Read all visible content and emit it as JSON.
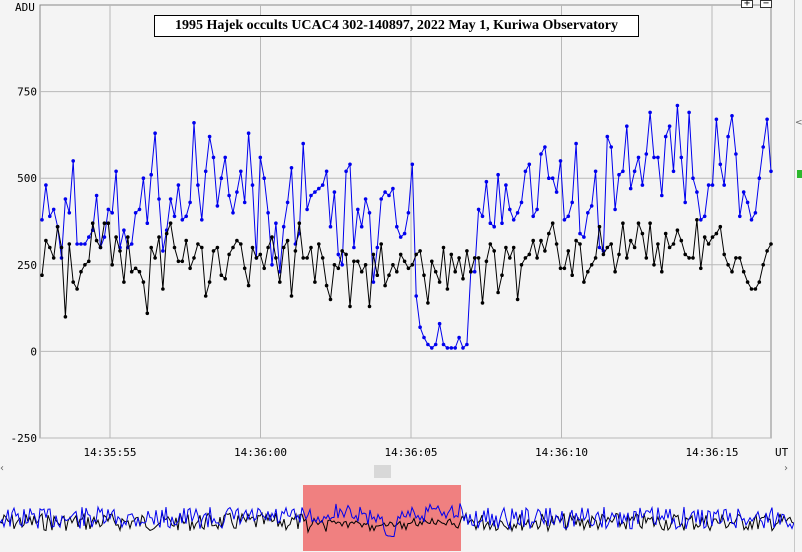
{
  "chart_data": {
    "type": "line",
    "title": "1995 Hajek occults UCAC4 302-140897, 2022 May 1, Kuriwa Observatory",
    "ylabel": "ADU",
    "xlabel": "UT",
    "ylim": [
      -250,
      1000
    ],
    "yticks": [
      750,
      500,
      250,
      0,
      -250
    ],
    "xlim": [
      14.35533,
      14.36183
    ],
    "xtick_labels": [
      "14:35:55",
      "14:36:00",
      "14:36:05",
      "14:36:10",
      "14:36:15"
    ],
    "grid": true,
    "series": [
      {
        "color": "#0000ee",
        "values": [
          380,
          480,
          390,
          410,
          360,
          270,
          440,
          400,
          550,
          310,
          310,
          310,
          330,
          350,
          450,
          300,
          330,
          410,
          400,
          520,
          300,
          350,
          300,
          310,
          400,
          410,
          500,
          370,
          510,
          630,
          440,
          290,
          350,
          440,
          390,
          480,
          380,
          390,
          430,
          660,
          480,
          380,
          520,
          620,
          560,
          420,
          500,
          560,
          450,
          400,
          460,
          520,
          430,
          630,
          480,
          270,
          560,
          500,
          400,
          250,
          370,
          230,
          360,
          430,
          530,
          310,
          340,
          600,
          410,
          450,
          460,
          470,
          480,
          520,
          360,
          460,
          280,
          250,
          520,
          540,
          300,
          410,
          360,
          440,
          400,
          200,
          300,
          440,
          460,
          450,
          470,
          360,
          330,
          340,
          400,
          540,
          160,
          70,
          40,
          20,
          10,
          20,
          80,
          20,
          10,
          10,
          10,
          40,
          10,
          20,
          230,
          230,
          410,
          390,
          490,
          370,
          360,
          510,
          370,
          480,
          410,
          380,
          400,
          430,
          520,
          540,
          390,
          410,
          570,
          590,
          500,
          500,
          460,
          550,
          380,
          390,
          430,
          600,
          340,
          330,
          400,
          420,
          520,
          300,
          290,
          620,
          590,
          410,
          510,
          520,
          650,
          470,
          520,
          560,
          480,
          570,
          690,
          560,
          560,
          450,
          620,
          650,
          520,
          710,
          560,
          430,
          690,
          500,
          460,
          380,
          390,
          480,
          480,
          670,
          540,
          480,
          620,
          680,
          570,
          390,
          460,
          430,
          380,
          400,
          500,
          590,
          670,
          520
        ]
      },
      {
        "color": "#000000",
        "values": [
          220,
          320,
          300,
          270,
          360,
          300,
          100,
          310,
          200,
          180,
          230,
          250,
          260,
          370,
          320,
          300,
          370,
          370,
          250,
          330,
          290,
          200,
          330,
          230,
          240,
          230,
          200,
          110,
          300,
          270,
          330,
          180,
          340,
          370,
          300,
          260,
          260,
          320,
          240,
          270,
          310,
          300,
          160,
          200,
          290,
          300,
          220,
          210,
          280,
          300,
          320,
          310,
          240,
          190,
          300,
          270,
          280,
          240,
          300,
          330,
          270,
          200,
          300,
          320,
          160,
          290,
          370,
          270,
          270,
          300,
          200,
          310,
          270,
          190,
          150,
          250,
          240,
          290,
          280,
          130,
          260,
          260,
          230,
          250,
          130,
          280,
          220,
          310,
          190,
          220,
          250,
          230,
          280,
          260,
          240,
          250,
          280,
          290,
          220,
          140,
          260,
          230,
          200,
          300,
          180,
          280,
          230,
          270,
          210,
          290,
          230,
          270,
          270,
          140,
          260,
          310,
          290,
          170,
          220,
          300,
          270,
          300,
          150,
          250,
          270,
          280,
          320,
          270,
          320,
          290,
          340,
          370,
          310,
          240,
          240,
          290,
          220,
          320,
          310,
          200,
          230,
          250,
          270,
          360,
          280,
          300,
          310,
          230,
          280,
          370,
          270,
          320,
          300,
          370,
          340,
          270,
          370,
          250,
          310,
          230,
          340,
          300,
          310,
          350,
          320,
          280,
          270,
          270,
          380,
          240,
          330,
          310,
          330,
          340,
          360,
          280,
          250,
          230,
          270,
          270,
          230,
          200,
          180,
          180,
          200,
          250,
          290,
          310
        ]
      }
    ]
  },
  "ui": {
    "zoom_in_label": "+",
    "zoom_out_label": "−",
    "scroll_left_label": "‹",
    "scroll_right_label": "›",
    "edge_arrow_label": "<",
    "overview_highlight_color": "#f08080",
    "accent_blue": "#0000ee",
    "accent_black": "#000000"
  }
}
